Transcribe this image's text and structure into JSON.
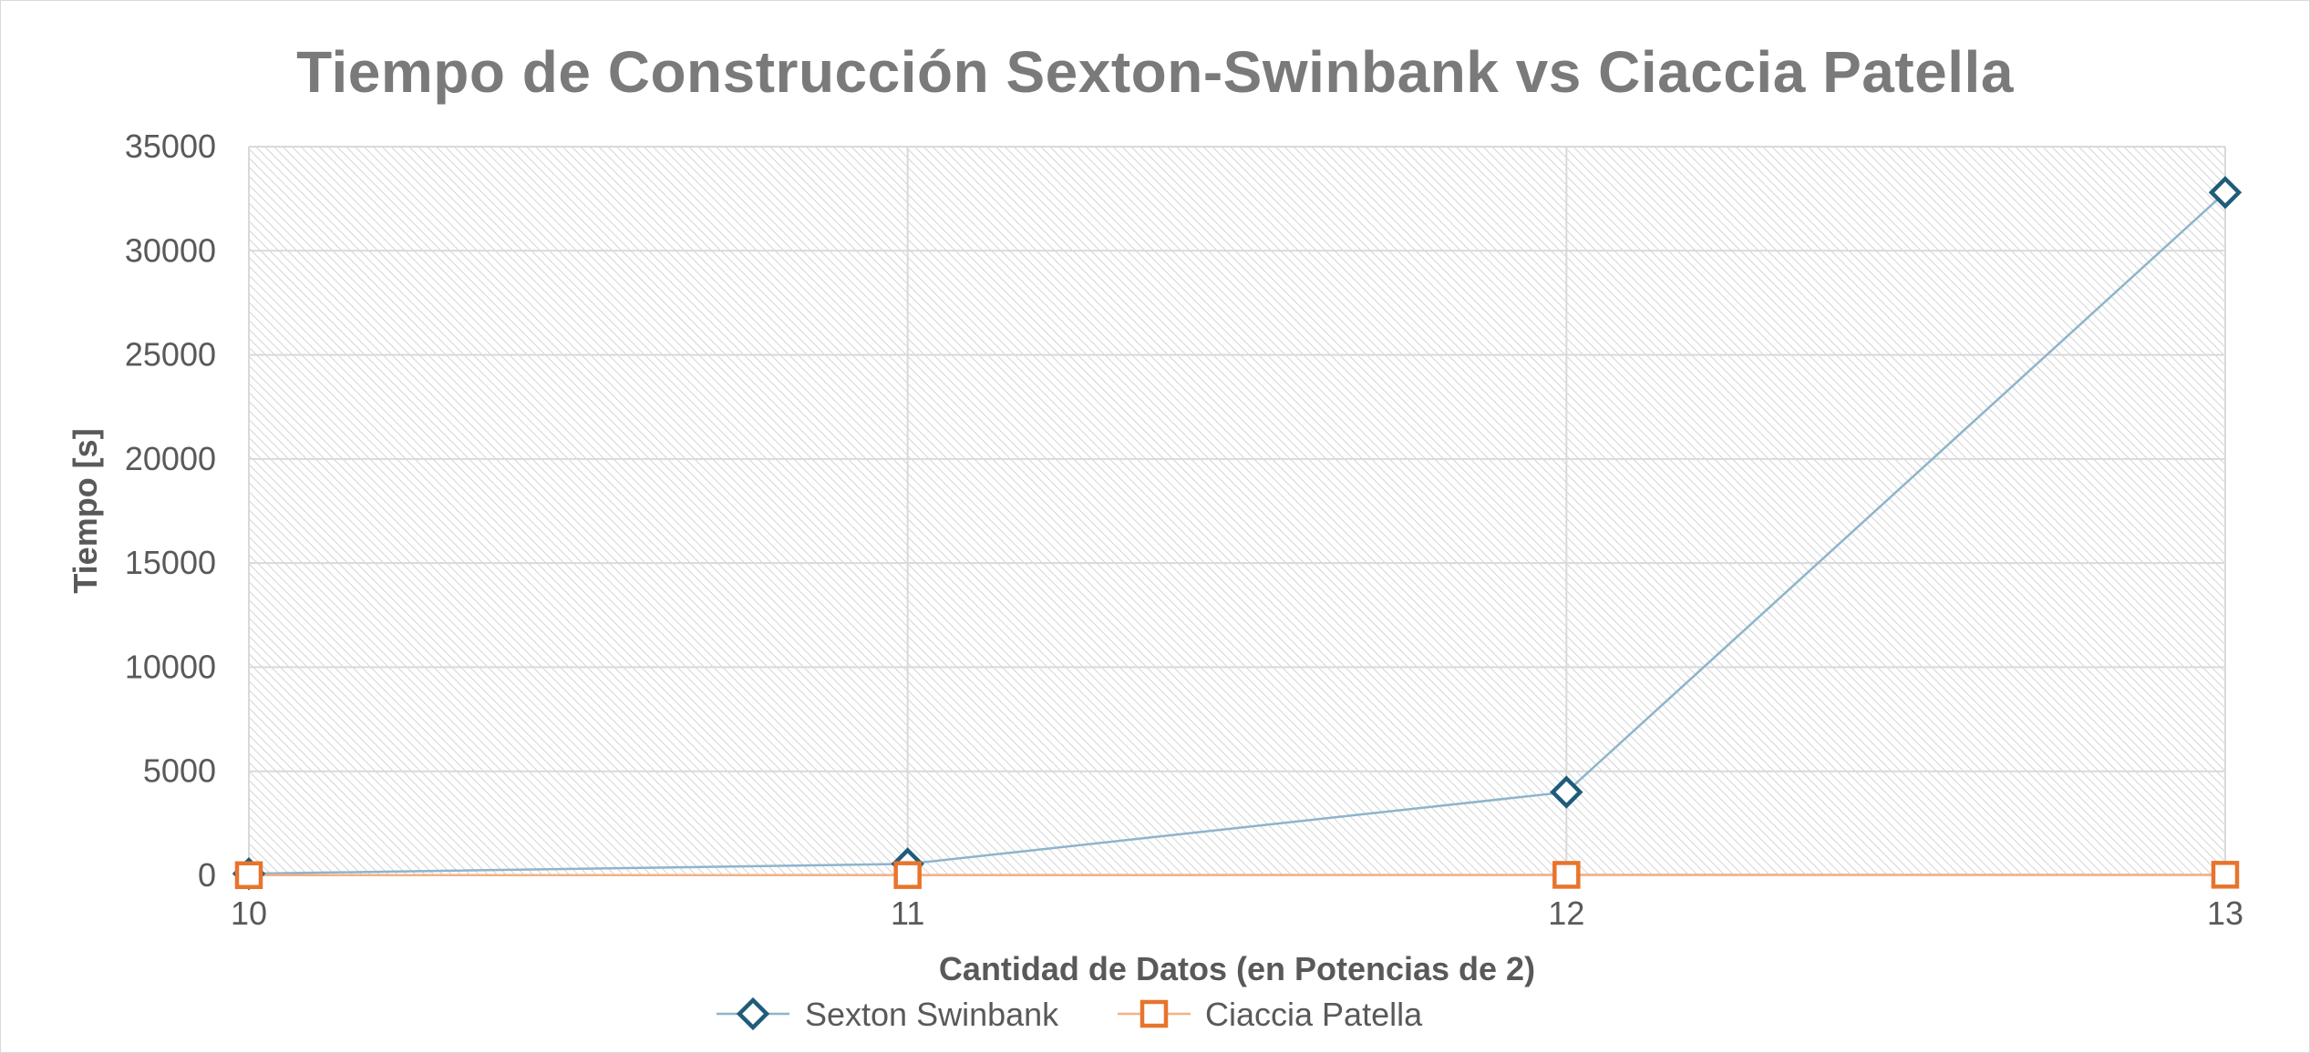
{
  "chart_data": {
    "type": "line",
    "title": "Tiempo de Construcción Sexton-Swinbank vs Ciaccia Patella",
    "xlabel": "Cantidad de Datos (en Potencias de 2)",
    "ylabel": "Tiempo [s]",
    "categories": [
      "10",
      "11",
      "12",
      "13"
    ],
    "ylim": [
      0,
      35000
    ],
    "yticks": [
      "0",
      "5000",
      "10000",
      "15000",
      "20000",
      "25000",
      "30000",
      "35000"
    ],
    "grid": true,
    "legend_position": "bottom",
    "series": [
      {
        "name": "Sexton Swinbank",
        "values": [
          80,
          550,
          4000,
          32800
        ],
        "color": "#1f5c7a",
        "line_color": "#8eb4cb",
        "marker": "diamond"
      },
      {
        "name": "Ciaccia Patella",
        "values": [
          10,
          15,
          25,
          30
        ],
        "color": "#e8742c",
        "line_color": "#f4b183",
        "marker": "square"
      }
    ]
  }
}
